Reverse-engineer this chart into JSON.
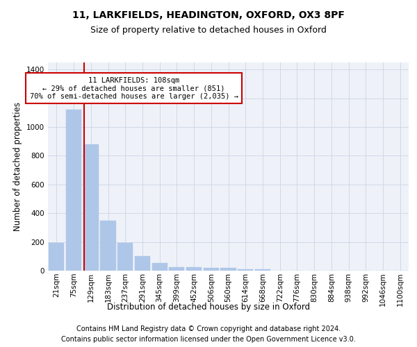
{
  "title1": "11, LARKFIELDS, HEADINGTON, OXFORD, OX3 8PF",
  "title2": "Size of property relative to detached houses in Oxford",
  "xlabel": "Distribution of detached houses by size in Oxford",
  "ylabel": "Number of detached properties",
  "footer1": "Contains HM Land Registry data © Crown copyright and database right 2024.",
  "footer2": "Contains public sector information licensed under the Open Government Licence v3.0.",
  "categories": [
    "21sqm",
    "75sqm",
    "129sqm",
    "183sqm",
    "237sqm",
    "291sqm",
    "345sqm",
    "399sqm",
    "452sqm",
    "506sqm",
    "560sqm",
    "614sqm",
    "668sqm",
    "722sqm",
    "776sqm",
    "830sqm",
    "884sqm",
    "938sqm",
    "992sqm",
    "1046sqm",
    "1100sqm"
  ],
  "values": [
    195,
    1120,
    880,
    350,
    192,
    100,
    52,
    22,
    22,
    17,
    17,
    10,
    10,
    0,
    0,
    0,
    0,
    0,
    0,
    0,
    0
  ],
  "bar_color": "#aec6e8",
  "bar_edge_color": "#aec6e8",
  "vline_color": "#cc0000",
  "annotation_text": "11 LARKFIELDS: 108sqm\n← 29% of detached houses are smaller (851)\n70% of semi-detached houses are larger (2,035) →",
  "annotation_box_color": "#ffffff",
  "annotation_box_edge": "#cc0000",
  "ylim": [
    0,
    1450
  ],
  "yticks": [
    0,
    200,
    400,
    600,
    800,
    1000,
    1200,
    1400
  ],
  "grid_color": "#d0d8e8",
  "bg_color": "#eef2f8",
  "fig_bg_color": "#ffffff",
  "title1_fontsize": 10,
  "title2_fontsize": 9,
  "axis_label_fontsize": 8.5,
  "tick_fontsize": 7.5,
  "footer_fontsize": 7,
  "ann_fontsize": 7.5
}
